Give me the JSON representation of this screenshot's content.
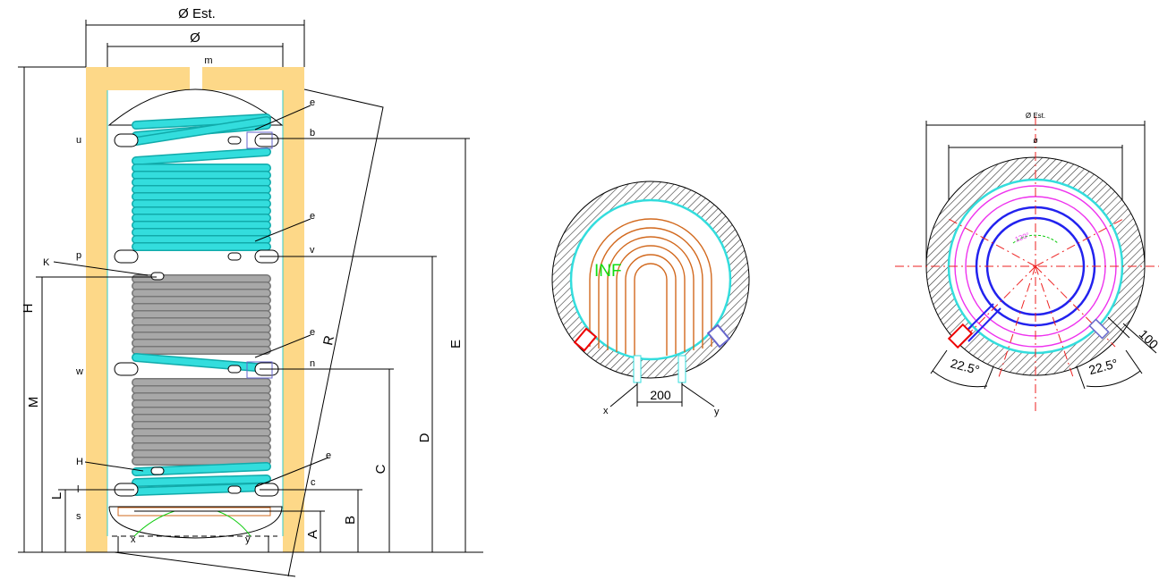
{
  "tank": {
    "labels": [
      "Ø Est.",
      "Ø",
      "m",
      "e",
      "e",
      "e",
      "e",
      "u",
      "b",
      "p",
      "v",
      "K",
      "w",
      "n",
      "H",
      "l",
      "s",
      "c",
      "x",
      "y"
    ],
    "dimensions": [
      "H",
      "M",
      "L",
      "R",
      "E",
      "D",
      "C",
      "B",
      "A"
    ]
  },
  "plan": {
    "labels": [
      "INF",
      "200",
      "x",
      "y"
    ]
  },
  "section": {
    "labels": [
      "Ø Est.",
      "ø",
      "120°",
      "22.5°",
      "22.5°",
      "100"
    ]
  }
}
